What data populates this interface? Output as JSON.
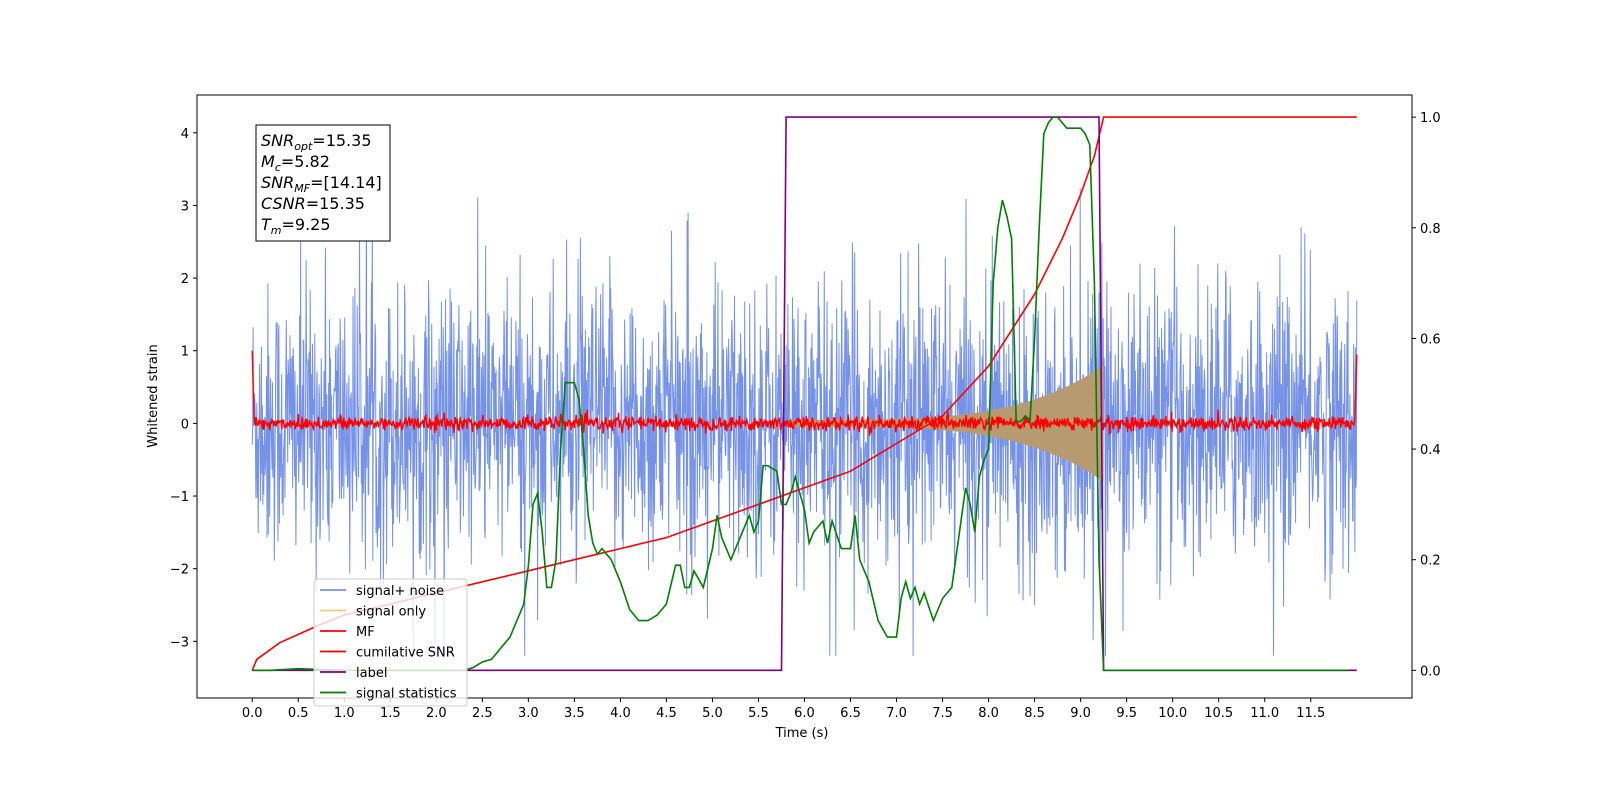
{
  "chart_data": {
    "type": "line",
    "xlabel": "Time (s)",
    "ylabel": "Whitened strain",
    "ylabel_right": "",
    "xlim": [
      -0.6,
      12.6
    ],
    "ylim": [
      -3.78,
      4.52
    ],
    "ylim_right": [
      -0.05,
      1.04
    ],
    "x_ticks": [
      0.0,
      0.5,
      1.0,
      1.5,
      2.0,
      2.5,
      3.0,
      3.5,
      4.0,
      4.5,
      5.0,
      5.5,
      6.0,
      6.5,
      7.0,
      7.5,
      8.0,
      8.5,
      9.0,
      9.5,
      10.0,
      10.5,
      11.0,
      11.5
    ],
    "x_tick_labels": [
      "0.0",
      "0.5",
      "1.0",
      "1.5",
      "2.0",
      "2.5",
      "3.0",
      "3.5",
      "4.0",
      "4.5",
      "5.0",
      "5.5",
      "6.0",
      "6.5",
      "7.0",
      "7.5",
      "8.0",
      "8.5",
      "9.0",
      "9.5",
      "10.0",
      "10.5",
      "11.0",
      "11.5"
    ],
    "y_ticks": [
      -3,
      -2,
      -1,
      0,
      1,
      2,
      3,
      4
    ],
    "y_tick_labels": [
      "−3",
      "−2",
      "−1",
      "0",
      "1",
      "2",
      "3",
      "4"
    ],
    "y_right_ticks": [
      0.0,
      0.2,
      0.4,
      0.6,
      0.8,
      1.0
    ],
    "y_right_tick_labels": [
      "0.0",
      "0.2",
      "0.4",
      "0.6",
      "0.8",
      "1.0"
    ],
    "grid": false,
    "legend_position": "lower-left",
    "info_box": {
      "position": "top-left",
      "lines": [
        {
          "main": "SNR",
          "sub": "opt",
          "value": "=15.35"
        },
        {
          "main": "M",
          "sub": "c",
          "value": "=5.82"
        },
        {
          "main": "SNR",
          "sub": "MF",
          "value": "=[14.14]"
        },
        {
          "main": "CSNR",
          "sub": "",
          "value": "=15.35"
        },
        {
          "main": "T",
          "sub": "m",
          "value": "=9.25"
        }
      ]
    },
    "series": [
      {
        "name": "signal+ noise",
        "color": "#7592e8",
        "axis": "left",
        "style": "noise",
        "x_range": [
          0.0,
          12.0
        ],
        "amplitude_sigma": 0.95,
        "peak_range": [
          -3.2,
          3.4
        ]
      },
      {
        "name": "signal only",
        "color": "#f5c97a",
        "axis": "left",
        "style": "chirp",
        "x_start": 5.8,
        "x_end": 9.25,
        "amp_start": 0.05,
        "amp_end": 0.8
      },
      {
        "name": "MF",
        "color": "#ff0000",
        "axis": "left",
        "style": "mf",
        "x_range": [
          0.0,
          12.0
        ],
        "amplitude_sigma": 0.05
      },
      {
        "name": "cumilative SNR",
        "color": "#ff0000",
        "axis": "right",
        "x": [
          0.0,
          0.05,
          0.3,
          0.7,
          1.0,
          1.5,
          2.0,
          2.5,
          3.0,
          3.5,
          4.0,
          4.5,
          5.0,
          5.5,
          6.0,
          6.5,
          7.0,
          7.5,
          8.0,
          8.5,
          8.8,
          9.0,
          9.15,
          9.25,
          9.5,
          10.0,
          11.0,
          12.0
        ],
        "y": [
          0.0,
          0.02,
          0.05,
          0.08,
          0.1,
          0.12,
          0.14,
          0.16,
          0.18,
          0.2,
          0.22,
          0.24,
          0.27,
          0.3,
          0.33,
          0.36,
          0.41,
          0.46,
          0.55,
          0.68,
          0.78,
          0.86,
          0.93,
          1.0,
          1.0,
          1.0,
          1.0,
          1.0
        ]
      },
      {
        "name": "label",
        "color": "#800080",
        "axis": "right",
        "x": [
          0.0,
          5.75,
          5.8,
          9.2,
          9.25,
          12.0
        ],
        "y": [
          0.0,
          0.0,
          1.0,
          1.0,
          0.0,
          0.0
        ]
      },
      {
        "name": "signal statistics",
        "color": "#008000",
        "axis": "right",
        "x": [
          0.0,
          0.2,
          0.5,
          1.0,
          1.5,
          2.0,
          2.3,
          2.4,
          2.5,
          2.6,
          2.8,
          2.95,
          3.0,
          3.05,
          3.1,
          3.15,
          3.2,
          3.25,
          3.3,
          3.35,
          3.4,
          3.45,
          3.5,
          3.55,
          3.6,
          3.65,
          3.7,
          3.75,
          3.8,
          3.9,
          4.0,
          4.1,
          4.2,
          4.3,
          4.4,
          4.5,
          4.6,
          4.65,
          4.7,
          4.75,
          4.8,
          4.9,
          5.0,
          5.05,
          5.1,
          5.15,
          5.2,
          5.3,
          5.4,
          5.45,
          5.5,
          5.55,
          5.6,
          5.7,
          5.75,
          5.8,
          5.85,
          5.9,
          5.95,
          6.0,
          6.05,
          6.1,
          6.15,
          6.2,
          6.25,
          6.3,
          6.4,
          6.5,
          6.55,
          6.6,
          6.7,
          6.8,
          6.9,
          7.0,
          7.05,
          7.1,
          7.15,
          7.2,
          7.25,
          7.3,
          7.4,
          7.45,
          7.5,
          7.6,
          7.7,
          7.75,
          7.8,
          7.85,
          7.9,
          7.95,
          8.0,
          8.05,
          8.1,
          8.15,
          8.2,
          8.25,
          8.3,
          8.35,
          8.4,
          8.45,
          8.5,
          8.55,
          8.6,
          8.65,
          8.7,
          8.75,
          8.8,
          8.85,
          8.9,
          9.0,
          9.05,
          9.1,
          9.15,
          9.2,
          9.25,
          9.5,
          10.0,
          11.0,
          11.9
        ],
        "y": [
          0.0,
          0.0,
          0.003,
          0.0,
          0.0,
          0.0,
          0.0,
          0.005,
          0.015,
          0.02,
          0.06,
          0.12,
          0.19,
          0.3,
          0.32,
          0.25,
          0.15,
          0.15,
          0.2,
          0.4,
          0.52,
          0.52,
          0.52,
          0.49,
          0.4,
          0.28,
          0.23,
          0.21,
          0.22,
          0.2,
          0.16,
          0.11,
          0.09,
          0.09,
          0.1,
          0.12,
          0.19,
          0.19,
          0.15,
          0.15,
          0.18,
          0.15,
          0.22,
          0.28,
          0.24,
          0.22,
          0.2,
          0.24,
          0.28,
          0.25,
          0.27,
          0.37,
          0.37,
          0.36,
          0.3,
          0.3,
          0.32,
          0.35,
          0.32,
          0.29,
          0.23,
          0.25,
          0.26,
          0.27,
          0.23,
          0.27,
          0.22,
          0.22,
          0.28,
          0.2,
          0.16,
          0.09,
          0.06,
          0.06,
          0.13,
          0.16,
          0.13,
          0.15,
          0.12,
          0.14,
          0.09,
          0.11,
          0.13,
          0.15,
          0.27,
          0.33,
          0.3,
          0.25,
          0.35,
          0.38,
          0.4,
          0.7,
          0.8,
          0.85,
          0.82,
          0.78,
          0.45,
          0.45,
          0.46,
          0.45,
          0.6,
          0.8,
          0.97,
          0.99,
          1.0,
          1.0,
          0.99,
          0.98,
          0.98,
          0.98,
          0.97,
          0.95,
          0.7,
          0.2,
          0.0,
          0.0,
          0.0,
          0.0,
          0.0
        ]
      }
    ]
  }
}
